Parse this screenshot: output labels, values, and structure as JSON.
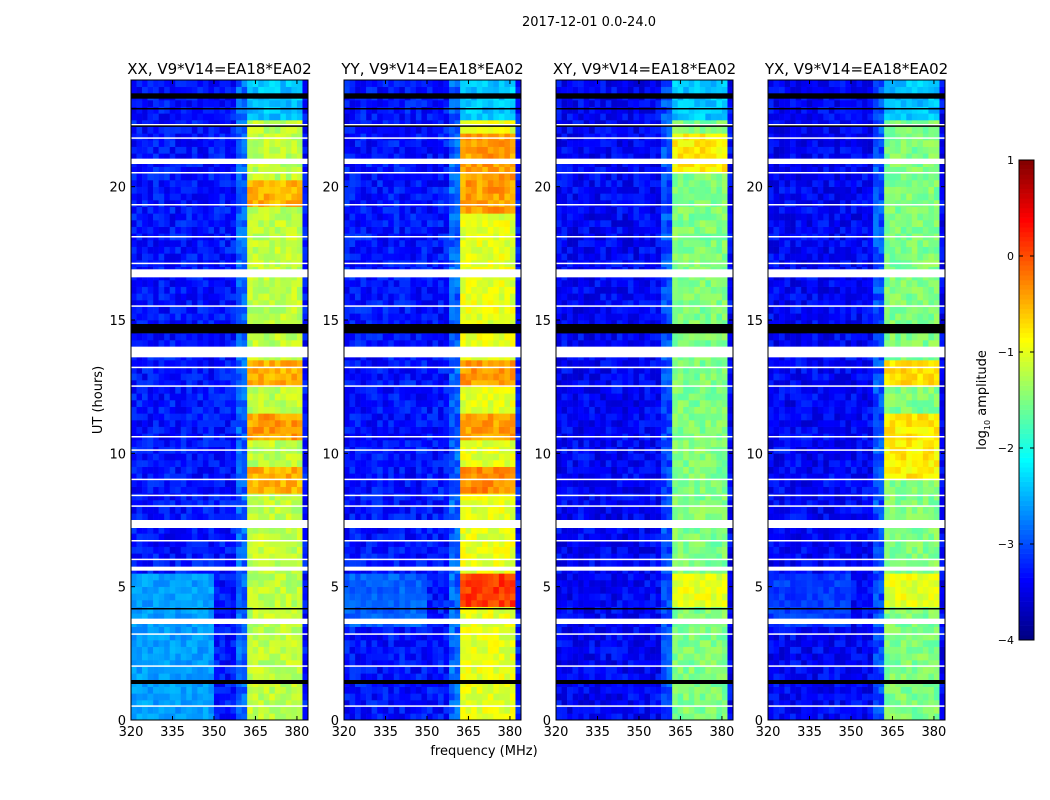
{
  "chart_data": {
    "type": "heatmap",
    "suptitle": "2017-12-01 0.0-24.0",
    "xlabel": "frequency (MHz)",
    "ylabel": "UT (hours)",
    "xlim": [
      320,
      384
    ],
    "ylim": [
      0,
      24
    ],
    "xticks": [
      320,
      335,
      350,
      365,
      380
    ],
    "yticks": [
      0,
      5,
      10,
      15,
      20
    ],
    "colorbar": {
      "label_main": "log",
      "label_sub": "10",
      "label_tail": " amplitude",
      "range": [
        -4,
        1
      ],
      "ticks": [
        -4,
        -3,
        -2,
        -1,
        0,
        1
      ],
      "colormap": "jet"
    },
    "band_channels_mhz": [
      [
        362,
        367.5
      ],
      [
        368.5,
        371.5
      ],
      [
        372.5,
        375.5
      ],
      [
        376.5,
        381
      ]
    ],
    "flagged_white_hours": [
      [
        20.85,
        21.05
      ],
      [
        16.6,
        16.9
      ],
      [
        13.6,
        14.0
      ],
      [
        7.2,
        7.5
      ],
      [
        5.6,
        5.75
      ],
      [
        3.6,
        3.8
      ],
      [
        20.5,
        20.55
      ],
      [
        19.3,
        19.35
      ],
      [
        18.1,
        18.15
      ],
      [
        17.1,
        17.15
      ],
      [
        15.5,
        15.55
      ],
      [
        13.2,
        13.25
      ],
      [
        12.5,
        12.55
      ],
      [
        10.6,
        10.65
      ],
      [
        10.1,
        10.15
      ],
      [
        9.0,
        9.05
      ],
      [
        8.4,
        8.45
      ],
      [
        8.0,
        8.05
      ],
      [
        6.7,
        6.75
      ],
      [
        6.0,
        6.05
      ],
      [
        3.2,
        3.25
      ],
      [
        2.0,
        2.05
      ],
      [
        0.5,
        0.55
      ],
      [
        22.3,
        22.35
      ],
      [
        21.8,
        21.85
      ]
    ],
    "flagged_black_hours": [
      [
        14.5,
        14.85
      ],
      [
        22.25,
        22.3
      ],
      [
        23.3,
        23.5
      ],
      [
        1.35,
        1.5
      ],
      [
        4.15,
        4.2
      ],
      [
        22.9,
        22.95
      ]
    ],
    "panels": [
      {
        "title": "XX, V9*V14=EA18*EA02",
        "background_log_amp": -3.3,
        "band_log_amp": -1.2,
        "hot_periods": [
          [
            12.5,
            13.5,
            -0.5
          ],
          [
            10.5,
            11.5,
            -0.4
          ],
          [
            8.5,
            9.5,
            -0.5
          ],
          [
            19.3,
            20.2,
            -0.5
          ]
        ],
        "low_freq_glow": [
          0,
          5.5,
          -2.6
        ]
      },
      {
        "title": "YY, V9*V14=EA18*EA02",
        "background_log_amp": -3.3,
        "band_log_amp": -1.0,
        "hot_periods": [
          [
            4.2,
            5.5,
            0.1
          ],
          [
            19.0,
            22.0,
            -0.4
          ],
          [
            12.5,
            13.5,
            -0.4
          ],
          [
            10.5,
            11.5,
            -0.4
          ],
          [
            8.5,
            9.5,
            -0.3
          ]
        ],
        "low_freq_glow": [
          3.5,
          5.5,
          -2.9
        ]
      },
      {
        "title": "XY, V9*V14=EA18*EA02",
        "background_log_amp": -3.4,
        "band_log_amp": -1.5,
        "hot_periods": [
          [
            4.2,
            5.5,
            -1.0
          ],
          [
            20.5,
            22.0,
            -0.8
          ]
        ],
        "low_freq_glow": [
          0,
          0,
          -3.4
        ]
      },
      {
        "title": "YX, V9*V14=EA18*EA02",
        "background_log_amp": -3.4,
        "band_log_amp": -1.5,
        "hot_periods": [
          [
            4.2,
            5.5,
            -1.0
          ],
          [
            12.5,
            13.5,
            -0.7
          ],
          [
            9.0,
            11.5,
            -0.8
          ]
        ],
        "low_freq_glow": [
          3.5,
          5.5,
          -3.1
        ]
      }
    ]
  }
}
